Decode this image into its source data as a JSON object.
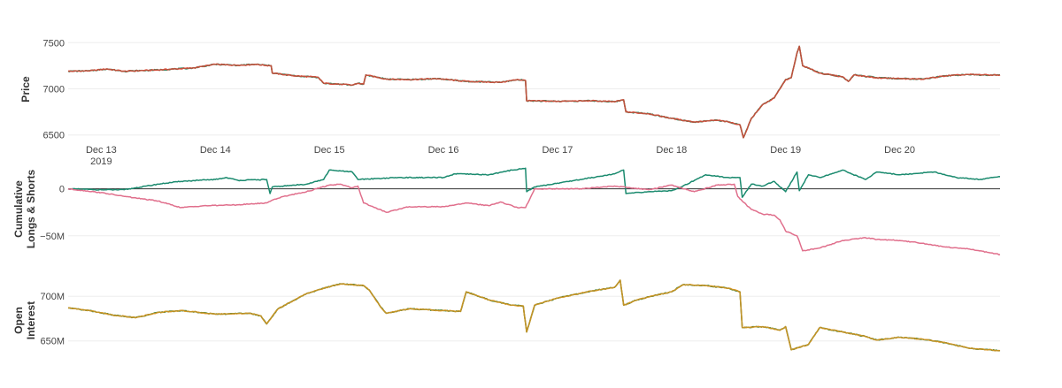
{
  "chart_data": [
    {
      "type": "line",
      "ylabel": "Price",
      "ylim": [
        6430,
        7560
      ],
      "grid": true,
      "yticks": [
        {
          "value": 7500,
          "label": "7500"
        },
        {
          "value": 7000,
          "label": "7000"
        },
        {
          "value": 6500,
          "label": "6500"
        }
      ],
      "x_ticks": [
        {
          "x": 0.0,
          "label": "Dec 13",
          "sublabel": "2019"
        },
        {
          "x": 1.0,
          "label": "Dec 14"
        },
        {
          "x": 2.0,
          "label": "Dec 15"
        },
        {
          "x": 3.0,
          "label": "Dec 16"
        },
        {
          "x": 4.0,
          "label": "Dec 17"
        },
        {
          "x": 5.0,
          "label": "Dec 18"
        },
        {
          "x": 6.0,
          "label": "Dec 19"
        },
        {
          "x": 7.0,
          "label": "Dec 20"
        }
      ],
      "x_unit": "days since Dec 13 2019",
      "series": [
        {
          "color": "#e04a3a",
          "accent_color": "#1b7a4f",
          "points": [
            [
              -0.29,
              7190
            ],
            [
              -0.1,
              7195
            ],
            [
              0.05,
              7215
            ],
            [
              0.2,
              7190
            ],
            [
              0.5,
              7205
            ],
            [
              0.8,
              7225
            ],
            [
              1.0,
              7265
            ],
            [
              1.2,
              7255
            ],
            [
              1.35,
              7265
            ],
            [
              1.49,
              7250
            ],
            [
              1.5,
              7170
            ],
            [
              1.7,
              7140
            ],
            [
              1.9,
              7125
            ],
            [
              1.95,
              7060
            ],
            [
              2.1,
              7050
            ],
            [
              2.2,
              7040
            ],
            [
              2.25,
              7060
            ],
            [
              2.3,
              7050
            ],
            [
              2.32,
              7150
            ],
            [
              2.5,
              7105
            ],
            [
              2.7,
              7100
            ],
            [
              2.95,
              7110
            ],
            [
              3.2,
              7080
            ],
            [
              3.5,
              7070
            ],
            [
              3.65,
              7100
            ],
            [
              3.72,
              7090
            ],
            [
              3.73,
              6870
            ],
            [
              4.0,
              6865
            ],
            [
              4.3,
              6870
            ],
            [
              4.5,
              6860
            ],
            [
              4.58,
              6880
            ],
            [
              4.6,
              6750
            ],
            [
              4.8,
              6730
            ],
            [
              5.0,
              6680
            ],
            [
              5.2,
              6640
            ],
            [
              5.4,
              6660
            ],
            [
              5.5,
              6640
            ],
            [
              5.6,
              6610
            ],
            [
              5.63,
              6470
            ],
            [
              5.7,
              6680
            ],
            [
              5.8,
              6830
            ],
            [
              5.9,
              6900
            ],
            [
              5.95,
              7000
            ],
            [
              6.0,
              7100
            ],
            [
              6.05,
              7120
            ],
            [
              6.1,
              7390
            ],
            [
              6.12,
              7460
            ],
            [
              6.15,
              7250
            ],
            [
              6.3,
              7170
            ],
            [
              6.5,
              7130
            ],
            [
              6.55,
              7080
            ],
            [
              6.6,
              7150
            ],
            [
              6.8,
              7120
            ],
            [
              7.0,
              7110
            ],
            [
              7.2,
              7105
            ],
            [
              7.4,
              7140
            ],
            [
              7.6,
              7155
            ],
            [
              7.8,
              7150
            ],
            [
              7.88,
              7150
            ]
          ]
        }
      ]
    },
    {
      "type": "line",
      "ylabel": "Cumulative\nLongs & Shorts",
      "ylim": [
        -70000000,
        27000000
      ],
      "grid": true,
      "zero_line": true,
      "yticks": [
        {
          "value": 0,
          "label": "0"
        },
        {
          "value": -50000000,
          "label": "−50M"
        }
      ],
      "series": [
        {
          "color": "#1a8a6e",
          "points": [
            [
              -0.29,
              0
            ],
            [
              0.0,
              -1000000
            ],
            [
              0.2,
              -1000000
            ],
            [
              0.5,
              5000000
            ],
            [
              0.7,
              8000000
            ],
            [
              1.0,
              10000000
            ],
            [
              1.1,
              12000000
            ],
            [
              1.2,
              9000000
            ],
            [
              1.45,
              10000000
            ],
            [
              1.48,
              -5000000
            ],
            [
              1.5,
              2000000
            ],
            [
              1.6,
              3000000
            ],
            [
              1.8,
              5000000
            ],
            [
              1.95,
              10000000
            ],
            [
              2.0,
              20000000
            ],
            [
              2.2,
              18000000
            ],
            [
              2.25,
              10000000
            ],
            [
              2.6,
              12000000
            ],
            [
              3.0,
              12000000
            ],
            [
              3.1,
              16000000
            ],
            [
              3.4,
              15000000
            ],
            [
              3.6,
              20000000
            ],
            [
              3.72,
              22000000
            ],
            [
              3.73,
              -3000000
            ],
            [
              3.8,
              2000000
            ],
            [
              4.2,
              10000000
            ],
            [
              4.5,
              16000000
            ],
            [
              4.58,
              20000000
            ],
            [
              4.6,
              -5000000
            ],
            [
              4.8,
              -3000000
            ],
            [
              5.0,
              -2000000
            ],
            [
              5.1,
              3000000
            ],
            [
              5.3,
              15000000
            ],
            [
              5.5,
              12000000
            ],
            [
              5.6,
              12000000
            ],
            [
              5.62,
              -9000000
            ],
            [
              5.7,
              5000000
            ],
            [
              5.8,
              3000000
            ],
            [
              5.9,
              8000000
            ],
            [
              6.0,
              -3000000
            ],
            [
              6.1,
              18000000
            ],
            [
              6.12,
              -2000000
            ],
            [
              6.2,
              15000000
            ],
            [
              6.3,
              12000000
            ],
            [
              6.5,
              20000000
            ],
            [
              6.7,
              10000000
            ],
            [
              6.8,
              18000000
            ],
            [
              7.0,
              15000000
            ],
            [
              7.3,
              18000000
            ],
            [
              7.5,
              12000000
            ],
            [
              7.7,
              10000000
            ],
            [
              7.88,
              13000000
            ]
          ]
        },
        {
          "color": "#e06f8c",
          "points": [
            [
              -0.29,
              0
            ],
            [
              0.0,
              -4000000
            ],
            [
              0.2,
              -8000000
            ],
            [
              0.5,
              -13000000
            ],
            [
              0.7,
              -20000000
            ],
            [
              0.9,
              -18000000
            ],
            [
              1.2,
              -17000000
            ],
            [
              1.45,
              -15000000
            ],
            [
              1.5,
              -12000000
            ],
            [
              1.6,
              -8000000
            ],
            [
              1.8,
              -3000000
            ],
            [
              2.0,
              4000000
            ],
            [
              2.1,
              5000000
            ],
            [
              2.2,
              1000000
            ],
            [
              2.25,
              3000000
            ],
            [
              2.3,
              -15000000
            ],
            [
              2.5,
              -25000000
            ],
            [
              2.7,
              -19000000
            ],
            [
              3.0,
              -19000000
            ],
            [
              3.2,
              -15000000
            ],
            [
              3.4,
              -18000000
            ],
            [
              3.5,
              -14000000
            ],
            [
              3.65,
              -20000000
            ],
            [
              3.72,
              -20000000
            ],
            [
              3.8,
              0
            ],
            [
              4.2,
              0
            ],
            [
              4.5,
              3000000
            ],
            [
              4.8,
              -1000000
            ],
            [
              5.0,
              4000000
            ],
            [
              5.2,
              -3000000
            ],
            [
              5.4,
              4000000
            ],
            [
              5.55,
              5000000
            ],
            [
              5.58,
              -8000000
            ],
            [
              5.62,
              -13000000
            ],
            [
              5.7,
              -22000000
            ],
            [
              5.8,
              -27000000
            ],
            [
              5.9,
              -28000000
            ],
            [
              5.95,
              -33000000
            ],
            [
              6.0,
              -45000000
            ],
            [
              6.1,
              -50000000
            ],
            [
              6.15,
              -66000000
            ],
            [
              6.3,
              -63000000
            ],
            [
              6.5,
              -55000000
            ],
            [
              6.7,
              -52000000
            ],
            [
              6.8,
              -54000000
            ],
            [
              7.0,
              -55000000
            ],
            [
              7.2,
              -58000000
            ],
            [
              7.4,
              -62000000
            ],
            [
              7.6,
              -64000000
            ],
            [
              7.88,
              -70000000
            ]
          ]
        }
      ]
    },
    {
      "type": "line",
      "ylabel": "Open\nInterest",
      "ylim": [
        624000000,
        722000000
      ],
      "grid": true,
      "yticks": [
        {
          "value": 700000000,
          "label": "700M"
        },
        {
          "value": 650000000,
          "label": "650M"
        }
      ],
      "series": [
        {
          "color": "#e39b2b",
          "accent_color": "#1f6e1a",
          "points": [
            [
              -0.29,
              687000000
            ],
            [
              -0.1,
              684000000
            ],
            [
              0.1,
              679000000
            ],
            [
              0.3,
              676000000
            ],
            [
              0.5,
              682000000
            ],
            [
              0.7,
              684000000
            ],
            [
              1.0,
              680000000
            ],
            [
              1.3,
              681000000
            ],
            [
              1.4,
              678000000
            ],
            [
              1.45,
              669000000
            ],
            [
              1.55,
              686000000
            ],
            [
              1.8,
              703000000
            ],
            [
              1.95,
              709000000
            ],
            [
              2.1,
              714000000
            ],
            [
              2.3,
              712000000
            ],
            [
              2.35,
              707000000
            ],
            [
              2.45,
              688000000
            ],
            [
              2.5,
              681000000
            ],
            [
              2.7,
              686000000
            ],
            [
              3.0,
              684000000
            ],
            [
              3.15,
              683000000
            ],
            [
              3.2,
              705000000
            ],
            [
              3.4,
              696000000
            ],
            [
              3.6,
              690000000
            ],
            [
              3.7,
              689000000
            ],
            [
              3.73,
              660000000
            ],
            [
              3.8,
              690000000
            ],
            [
              4.0,
              698000000
            ],
            [
              4.3,
              706000000
            ],
            [
              4.5,
              710000000
            ],
            [
              4.55,
              718000000
            ],
            [
              4.58,
              690000000
            ],
            [
              4.7,
              696000000
            ],
            [
              4.85,
              701000000
            ],
            [
              5.0,
              705000000
            ],
            [
              5.1,
              713000000
            ],
            [
              5.3,
              712000000
            ],
            [
              5.5,
              709000000
            ],
            [
              5.6,
              705000000
            ],
            [
              5.62,
              665000000
            ],
            [
              5.8,
              666000000
            ],
            [
              5.95,
              662000000
            ],
            [
              6.0,
              666000000
            ],
            [
              6.05,
              640000000
            ],
            [
              6.2,
              646000000
            ],
            [
              6.3,
              665000000
            ],
            [
              6.5,
              660000000
            ],
            [
              6.7,
              655000000
            ],
            [
              6.8,
              651000000
            ],
            [
              7.0,
              654000000
            ],
            [
              7.2,
              652000000
            ],
            [
              7.4,
              648000000
            ],
            [
              7.6,
              642000000
            ],
            [
              7.88,
              639000000
            ]
          ]
        }
      ]
    }
  ]
}
